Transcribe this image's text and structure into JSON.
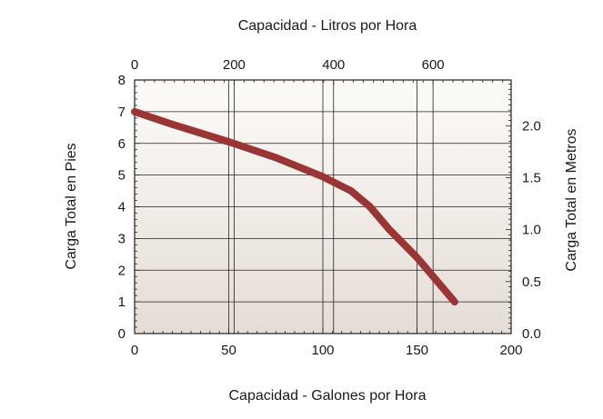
{
  "chart_data": {
    "type": "line",
    "title": "",
    "x_bottom": {
      "label": "Capacidad - Galones por Hora",
      "range": [
        0,
        200
      ],
      "ticks": [
        0,
        50,
        100,
        150,
        200
      ]
    },
    "x_top": {
      "label": "Capacidad - Litros por Hora",
      "range": [
        0,
        757
      ],
      "ticks": [
        0,
        200,
        400,
        600
      ]
    },
    "y_left": {
      "label": "Carga Total en Pies",
      "range": [
        0,
        8
      ],
      "ticks": [
        0,
        1,
        2,
        3,
        4,
        5,
        6,
        7,
        8
      ]
    },
    "y_right": {
      "label": "Carga Total en Metros",
      "range": [
        0,
        2.44
      ],
      "ticks": [
        "0.0",
        "0.5",
        "1.0",
        "1.5",
        "2.0"
      ]
    },
    "grid": true,
    "series": [
      {
        "color": "#9b3535",
        "x": [
          0,
          20,
          50,
          75,
          100,
          115,
          125,
          135,
          150,
          170
        ],
        "y": [
          7.0,
          6.6,
          6.05,
          5.55,
          4.95,
          4.5,
          4.0,
          3.3,
          2.4,
          1.0
        ]
      }
    ],
    "colors": {
      "plot_top": "#fdfbf9",
      "plot_bottom": "#e5ddd5",
      "grid": "#222222",
      "line": "#9b3535"
    }
  }
}
